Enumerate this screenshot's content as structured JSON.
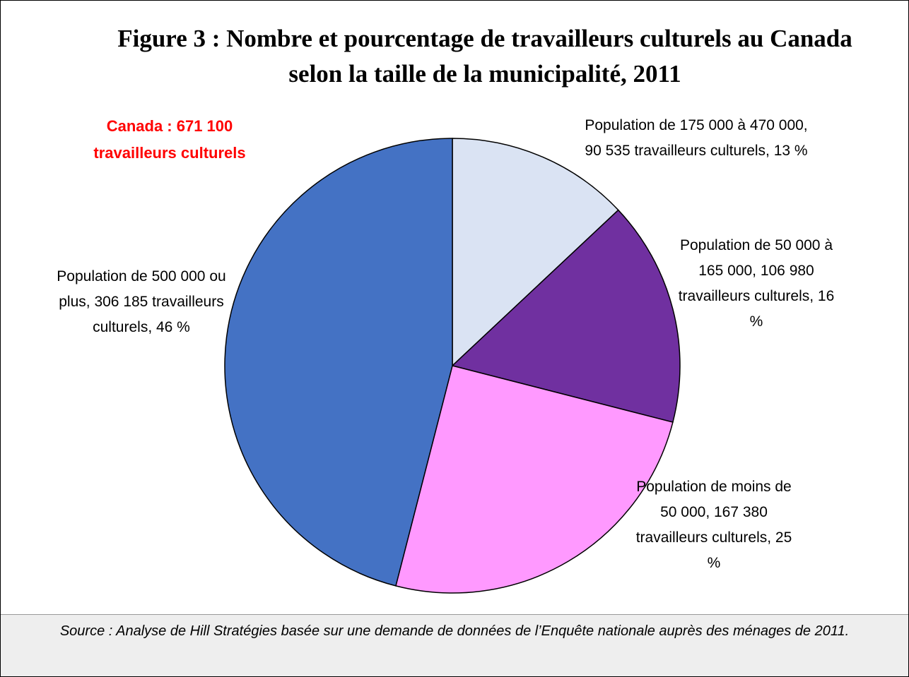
{
  "chart_data": {
    "type": "pie",
    "title": "Figure 3 : Nombre et pourcentage de travailleurs culturels au Canada selon la taille de la municipalité, 2011",
    "annotation": "Canada : 671 100 travailleurs culturels",
    "categories": [
      "Population de 175 000 à 470 000, 90 535 travailleurs culturels, 13 %",
      "Population de 50 000 à 165 000, 106 980 travailleurs culturels, 16 %",
      "Population de moins de 50 000, 167 380 travailleurs culturels, 25 %",
      "Population de 500 000 ou plus, 306 185 travailleurs culturels, 46 %"
    ],
    "values": [
      13,
      16,
      25,
      46
    ],
    "colors": [
      "#dae3f3",
      "#7030a0",
      "#ff99ff",
      "#4472c4"
    ],
    "source": "Source : Analyse de Hill Stratégies basée sur une demande de données de l’Enquête nationale auprès des ménages de 2011."
  }
}
